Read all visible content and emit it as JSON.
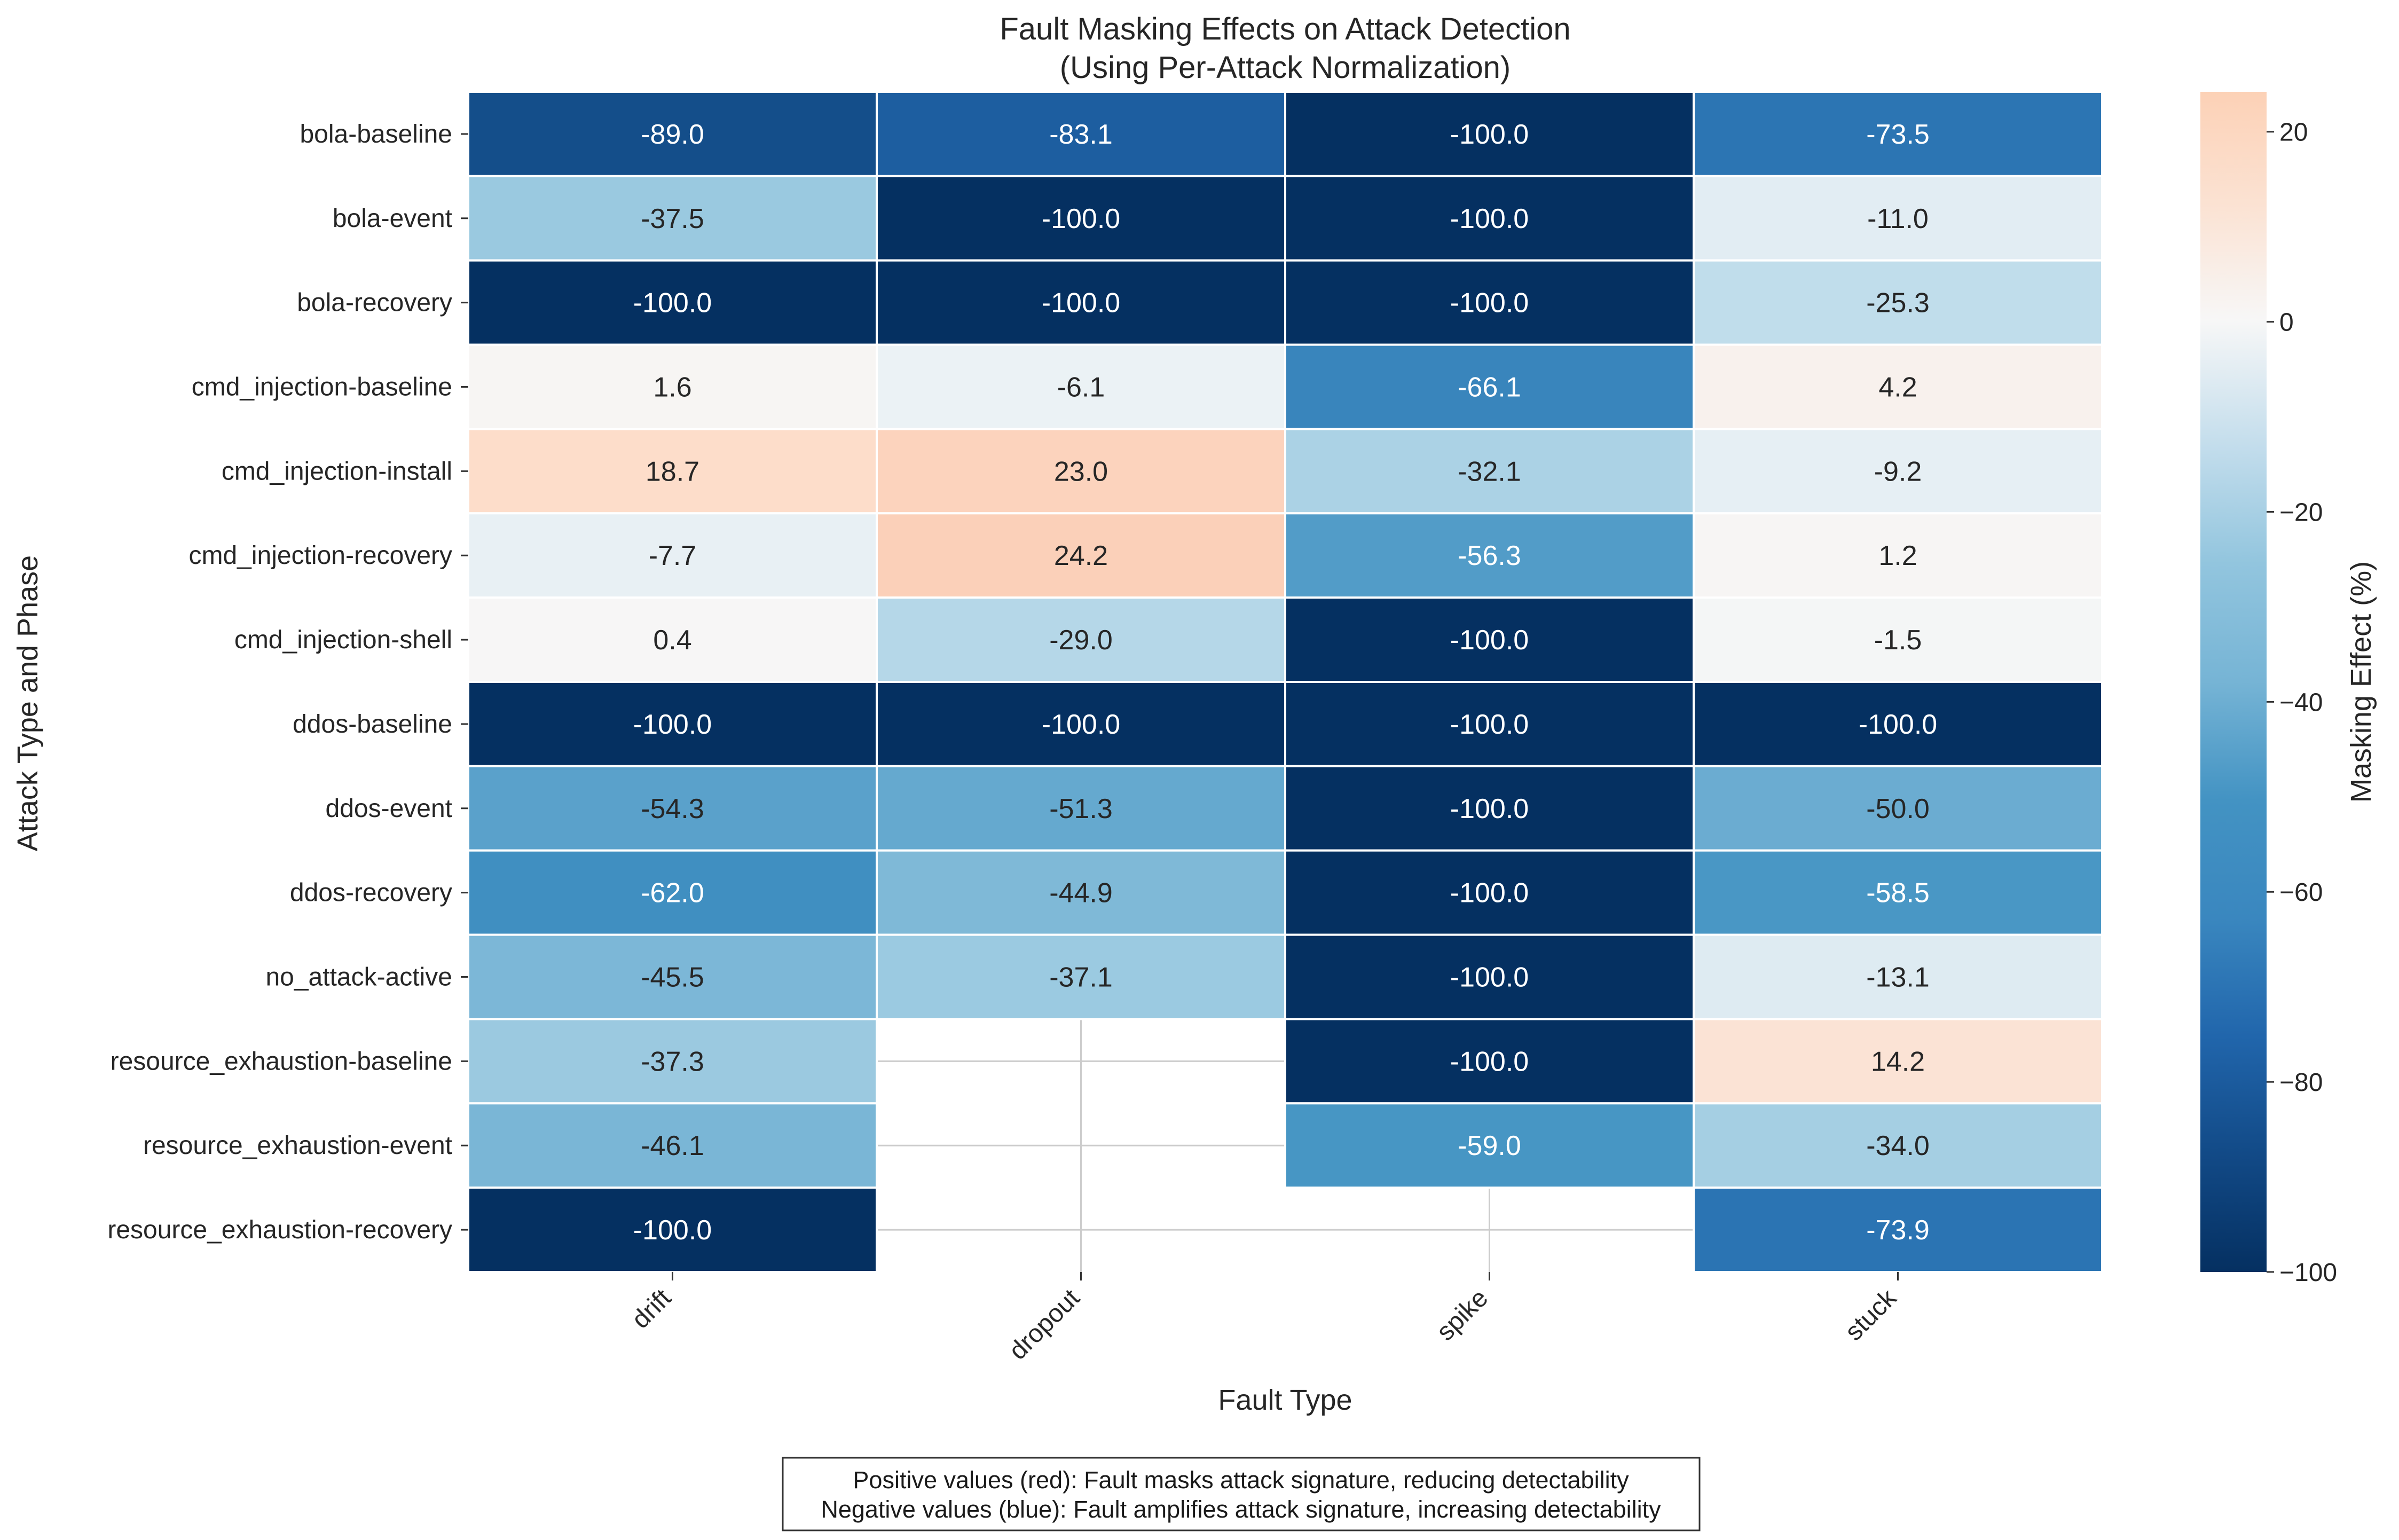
{
  "chart_data": {
    "type": "heatmap",
    "title": "Fault Masking Effects on Attack Detection",
    "subtitle": "(Using Per-Attack Normalization)",
    "xlabel": "Fault Type",
    "ylabel": "Attack Type and Phase",
    "columns": [
      "drift",
      "dropout",
      "spike",
      "stuck"
    ],
    "rows": [
      "bola-baseline",
      "bola-event",
      "bola-recovery",
      "cmd_injection-baseline",
      "cmd_injection-install",
      "cmd_injection-recovery",
      "cmd_injection-shell",
      "ddos-baseline",
      "ddos-event",
      "ddos-recovery",
      "no_attack-active",
      "resource_exhaustion-baseline",
      "resource_exhaustion-event",
      "resource_exhaustion-recovery"
    ],
    "values": [
      [
        -89.0,
        -83.1,
        -100.0,
        -73.5
      ],
      [
        -37.5,
        -100.0,
        -100.0,
        -11.0
      ],
      [
        -100.0,
        -100.0,
        -100.0,
        -25.3
      ],
      [
        1.6,
        -6.1,
        -66.1,
        4.2
      ],
      [
        18.7,
        23.0,
        -32.1,
        -9.2
      ],
      [
        -7.7,
        24.2,
        -56.3,
        1.2
      ],
      [
        0.4,
        -29.0,
        -100.0,
        -1.5
      ],
      [
        -100.0,
        -100.0,
        -100.0,
        -100.0
      ],
      [
        -54.3,
        -51.3,
        -100.0,
        -50.0
      ],
      [
        -62.0,
        -44.9,
        -100.0,
        -58.5
      ],
      [
        -45.5,
        -37.1,
        -100.0,
        -13.1
      ],
      [
        -37.3,
        null,
        -100.0,
        14.2
      ],
      [
        -46.1,
        null,
        -59.0,
        -34.0
      ],
      [
        -100.0,
        null,
        null,
        -73.9
      ]
    ],
    "colorbar": {
      "label": "Masking Effect (%)",
      "vmin": -100,
      "vmax": 24.2,
      "ticks": [
        20,
        0,
        -20,
        -40,
        -60,
        -80,
        -100
      ],
      "tick_labels": [
        "20",
        "0",
        "−20",
        "−40",
        "−60",
        "−80",
        "−100"
      ]
    },
    "colormap": "RdBu_r",
    "grid": true,
    "note_lines": [
      "Positive values (red): Fault masks attack signature, reducing detectability",
      "Negative values (blue): Fault amplifies attack signature, increasing detectability"
    ]
  }
}
